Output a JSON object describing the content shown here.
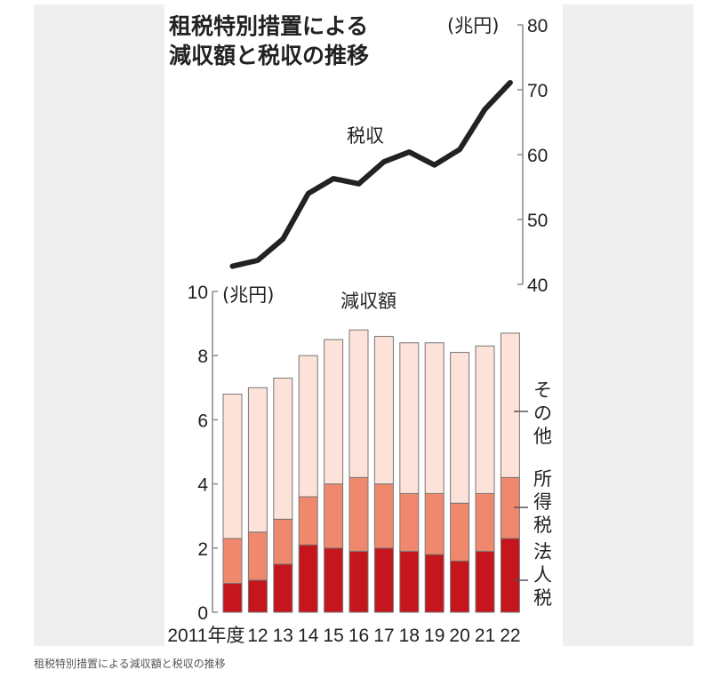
{
  "caption": "租税特別措置による減収額と税収の推移",
  "chart_data": {
    "type": "bar+line",
    "title": [
      "租税特別措置による",
      "減収額と税収の推移"
    ],
    "categories": [
      "2011年度",
      "12",
      "13",
      "14",
      "15",
      "16",
      "17",
      "18",
      "19",
      "20",
      "21",
      "22"
    ],
    "bar_chart": {
      "label": "減収額",
      "unit": "(兆円)",
      "ylim": [
        0,
        10
      ],
      "yticks": [
        "0",
        "2",
        "4",
        "6",
        "8",
        "10"
      ],
      "stacked": true,
      "series": [
        {
          "name": "法人税",
          "color": "#c4161c",
          "values": [
            0.9,
            1.0,
            1.5,
            2.1,
            2.0,
            1.9,
            2.0,
            1.9,
            1.8,
            1.6,
            1.9,
            2.3
          ]
        },
        {
          "name": "所得税",
          "color": "#f0886e",
          "values": [
            1.4,
            1.5,
            1.4,
            1.5,
            2.0,
            2.3,
            2.0,
            1.8,
            1.9,
            1.8,
            1.8,
            1.9
          ]
        },
        {
          "name": "その他",
          "color": "#fce2d8",
          "values": [
            4.5,
            4.5,
            4.4,
            4.4,
            4.5,
            4.6,
            4.6,
            4.7,
            4.7,
            4.7,
            4.6,
            4.5
          ]
        }
      ],
      "totals": [
        6.8,
        7.0,
        7.3,
        8.0,
        8.5,
        8.8,
        8.6,
        8.4,
        8.4,
        8.1,
        8.3,
        8.7
      ]
    },
    "line_chart": {
      "label": "税収",
      "unit": "(兆円)",
      "ylim": [
        40,
        80
      ],
      "yticks": [
        "40",
        "50",
        "60",
        "70",
        "80"
      ],
      "values": [
        42.8,
        43.7,
        47.0,
        54.0,
        56.3,
        55.5,
        58.9,
        60.4,
        58.4,
        60.8,
        67.0,
        71.1
      ],
      "color": "#222222"
    }
  }
}
